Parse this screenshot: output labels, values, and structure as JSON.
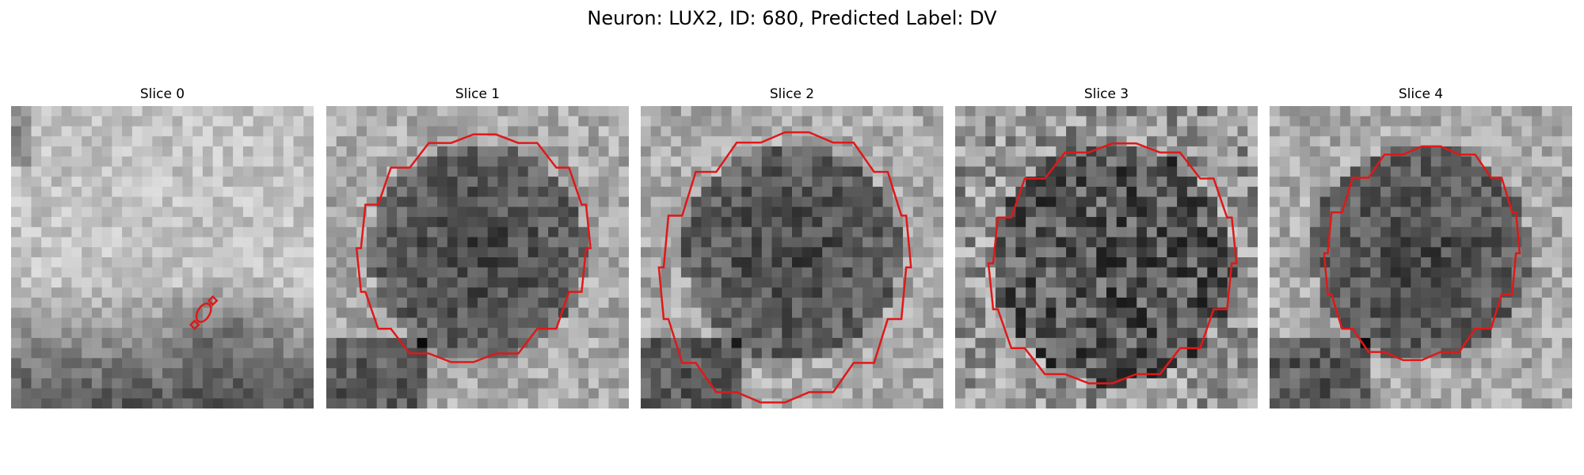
{
  "figure": {
    "title": "Neuron: LUX2, ID: 680, Predicted Label: DV",
    "contour_color": "#e01818"
  },
  "panels": [
    {
      "title": "Slice 0",
      "image": {
        "description": "grayscale pixel crop, mostly bright with dark lower region",
        "brightness_pattern": "bright-top-dark-bottom"
      },
      "contours": [
        {
          "shape": "diamond",
          "cx": 18.2,
          "cy": 21.7,
          "rx": 0.4,
          "ry": 0.4
        },
        {
          "shape": "ellipse",
          "cx": 19.1,
          "cy": 20.5,
          "rx": 0.6,
          "ry": 1.0
        },
        {
          "shape": "diamond",
          "cx": 20.0,
          "cy": 19.3,
          "rx": 0.4,
          "ry": 0.4
        }
      ]
    },
    {
      "title": "Slice 1",
      "image": {
        "description": "grayscale pixel crop with dark round cell body in center",
        "brightness_pattern": "dark-blob-center"
      },
      "contours": [
        {
          "shape": "polygon",
          "cx": 14.6,
          "cy": 14.1,
          "rx": 11.6,
          "ry": 11.3
        }
      ]
    },
    {
      "title": "Slice 2",
      "image": {
        "description": "grayscale pixel crop with large dark cell body",
        "brightness_pattern": "dark-blob-center"
      },
      "contours": [
        {
          "shape": "polygon",
          "cx": 14.3,
          "cy": 16.0,
          "rx": 12.5,
          "ry": 13.4
        }
      ]
    },
    {
      "title": "Slice 3",
      "image": {
        "description": "noisy grayscale pixel crop with dark cell body",
        "brightness_pattern": "noisy-dark-center"
      },
      "contours": [
        {
          "shape": "polygon",
          "cx": 15.6,
          "cy": 15.6,
          "rx": 12.3,
          "ry": 11.9
        }
      ]
    },
    {
      "title": "Slice 4",
      "image": {
        "description": "grayscale pixel crop with dark cell body and bright left side",
        "brightness_pattern": "dark-blob-center"
      },
      "contours": [
        {
          "shape": "polygon",
          "cx": 15.1,
          "cy": 14.6,
          "rx": 9.7,
          "ry": 10.6
        }
      ]
    }
  ]
}
